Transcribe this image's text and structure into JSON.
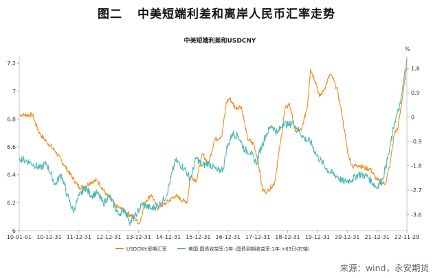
{
  "figure": {
    "label": "图二",
    "title": "中美短端利差和离岸人民币汇率走势"
  },
  "source": "来源：wind，永安期货",
  "chart_data": {
    "type": "line",
    "title": "中美短端利差和USDCNY",
    "x_ticks": [
      "10-01-01",
      "10-12-31",
      "11-12-31",
      "12-12-31",
      "13-12-31",
      "14-12-31",
      "15-12-31",
      "16-12-31",
      "17-12-31",
      "18-12-31",
      "19-12-31",
      "20-12-31",
      "21-12-31",
      "22-11-29"
    ],
    "left_axis": {
      "ticks": [
        "6",
        "6.2",
        "6.4",
        "6.6",
        "6.8",
        "7",
        "7.2"
      ],
      "ylim": [
        6.0,
        7.25
      ]
    },
    "right_axis": {
      "unit": "%",
      "ticks": [
        "1.8",
        "0.9",
        "0",
        "-0.9",
        "-1.8",
        "-2.7",
        "-3.6"
      ],
      "ylim": [
        -4.2,
        2.25
      ],
      "inverted": true
    },
    "grid": false,
    "legend_position": "bottom",
    "series": [
      {
        "name": "USDCNY:即期汇率",
        "axis": "left",
        "color": "#F08C1E",
        "x": [
          2010.0,
          2010.45,
          2010.5,
          2010.7,
          2010.9,
          2011.2,
          2011.5,
          2011.8,
          2012.0,
          2012.2,
          2012.4,
          2012.6,
          2012.9,
          2013.2,
          2013.5,
          2013.8,
          2014.0,
          2014.2,
          2014.4,
          2014.6,
          2014.9,
          2015.2,
          2015.5,
          2015.6,
          2015.7,
          2015.9,
          2016.1,
          2016.3,
          2016.5,
          2016.75,
          2016.9,
          2017.0,
          2017.2,
          2017.4,
          2017.6,
          2017.8,
          2017.95,
          2018.1,
          2018.25,
          2018.5,
          2018.7,
          2018.85,
          2019.0,
          2019.2,
          2019.4,
          2019.6,
          2019.7,
          2019.9,
          2020.0,
          2020.15,
          2020.35,
          2020.45,
          2020.6,
          2020.75,
          2020.95,
          2021.1,
          2021.3,
          2021.5,
          2021.7,
          2021.9,
          2022.05,
          2022.2,
          2022.35,
          2022.5,
          2022.6,
          2022.7,
          2022.8,
          2022.91
        ],
        "y": [
          6.83,
          6.83,
          6.79,
          6.69,
          6.64,
          6.57,
          6.47,
          6.37,
          6.31,
          6.32,
          6.35,
          6.36,
          6.26,
          6.18,
          6.14,
          6.1,
          6.05,
          6.21,
          6.26,
          6.16,
          6.2,
          6.25,
          6.21,
          6.21,
          6.39,
          6.36,
          6.55,
          6.48,
          6.65,
          6.68,
          6.92,
          6.95,
          6.88,
          6.89,
          6.66,
          6.62,
          6.51,
          6.29,
          6.28,
          6.34,
          6.63,
          6.87,
          6.91,
          6.71,
          6.72,
          6.9,
          7.16,
          7.05,
          6.96,
          7.01,
          7.12,
          7.09,
          7.0,
          6.83,
          6.55,
          6.46,
          6.47,
          6.45,
          6.44,
          6.37,
          6.34,
          6.34,
          6.48,
          6.71,
          6.72,
          6.87,
          7.01,
          7.17
        ]
      },
      {
        "name": "美国:国债收益率:1年-:国债到期收益率:1年:+63日(右轴)",
        "axis": "right",
        "color": "#4BB7B5",
        "x": [
          2010.0,
          2010.4,
          2010.7,
          2010.9,
          2011.2,
          2011.4,
          2011.6,
          2011.8,
          2012.0,
          2012.2,
          2012.4,
          2012.6,
          2012.8,
          2013.0,
          2013.3,
          2013.5,
          2013.7,
          2013.9,
          2014.1,
          2014.4,
          2014.7,
          2014.9,
          2015.2,
          2015.5,
          2015.7,
          2015.9,
          2016.1,
          2016.3,
          2016.6,
          2016.8,
          2016.9,
          2017.1,
          2017.3,
          2017.5,
          2017.7,
          2017.9,
          2018.0,
          2018.2,
          2018.4,
          2018.6,
          2018.8,
          2018.95,
          2019.1,
          2019.25,
          2019.5,
          2019.7,
          2019.9,
          2020.1,
          2020.3,
          2020.6,
          2020.8,
          2021.1,
          2021.3,
          2021.6,
          2021.9,
          2022.1,
          2022.3,
          2022.5,
          2022.7,
          2022.91
        ],
        "y": [
          -1.5,
          -1.7,
          -1.9,
          -1.7,
          -2.5,
          -2.1,
          -2.9,
          -3.5,
          -2.9,
          -2.6,
          -2.9,
          -2.8,
          -3.2,
          -2.9,
          -3.6,
          -3.4,
          -3.9,
          -3.6,
          -3.2,
          -3.4,
          -3.2,
          -2.9,
          -1.6,
          -1.9,
          -2.3,
          -1.5,
          -1.8,
          -1.7,
          -2.0,
          -1.9,
          -1.2,
          -0.6,
          -0.7,
          -1.2,
          -1.3,
          -1.7,
          -1.3,
          -0.7,
          -0.3,
          -0.6,
          -0.2,
          -0.3,
          -0.2,
          -0.4,
          -0.8,
          -0.9,
          -1.4,
          -1.7,
          -2.0,
          -2.2,
          -2.4,
          -2.3,
          -2.1,
          -2.2,
          -2.6,
          -2.3,
          -1.4,
          -0.2,
          0.5,
          2.2
        ]
      }
    ]
  }
}
